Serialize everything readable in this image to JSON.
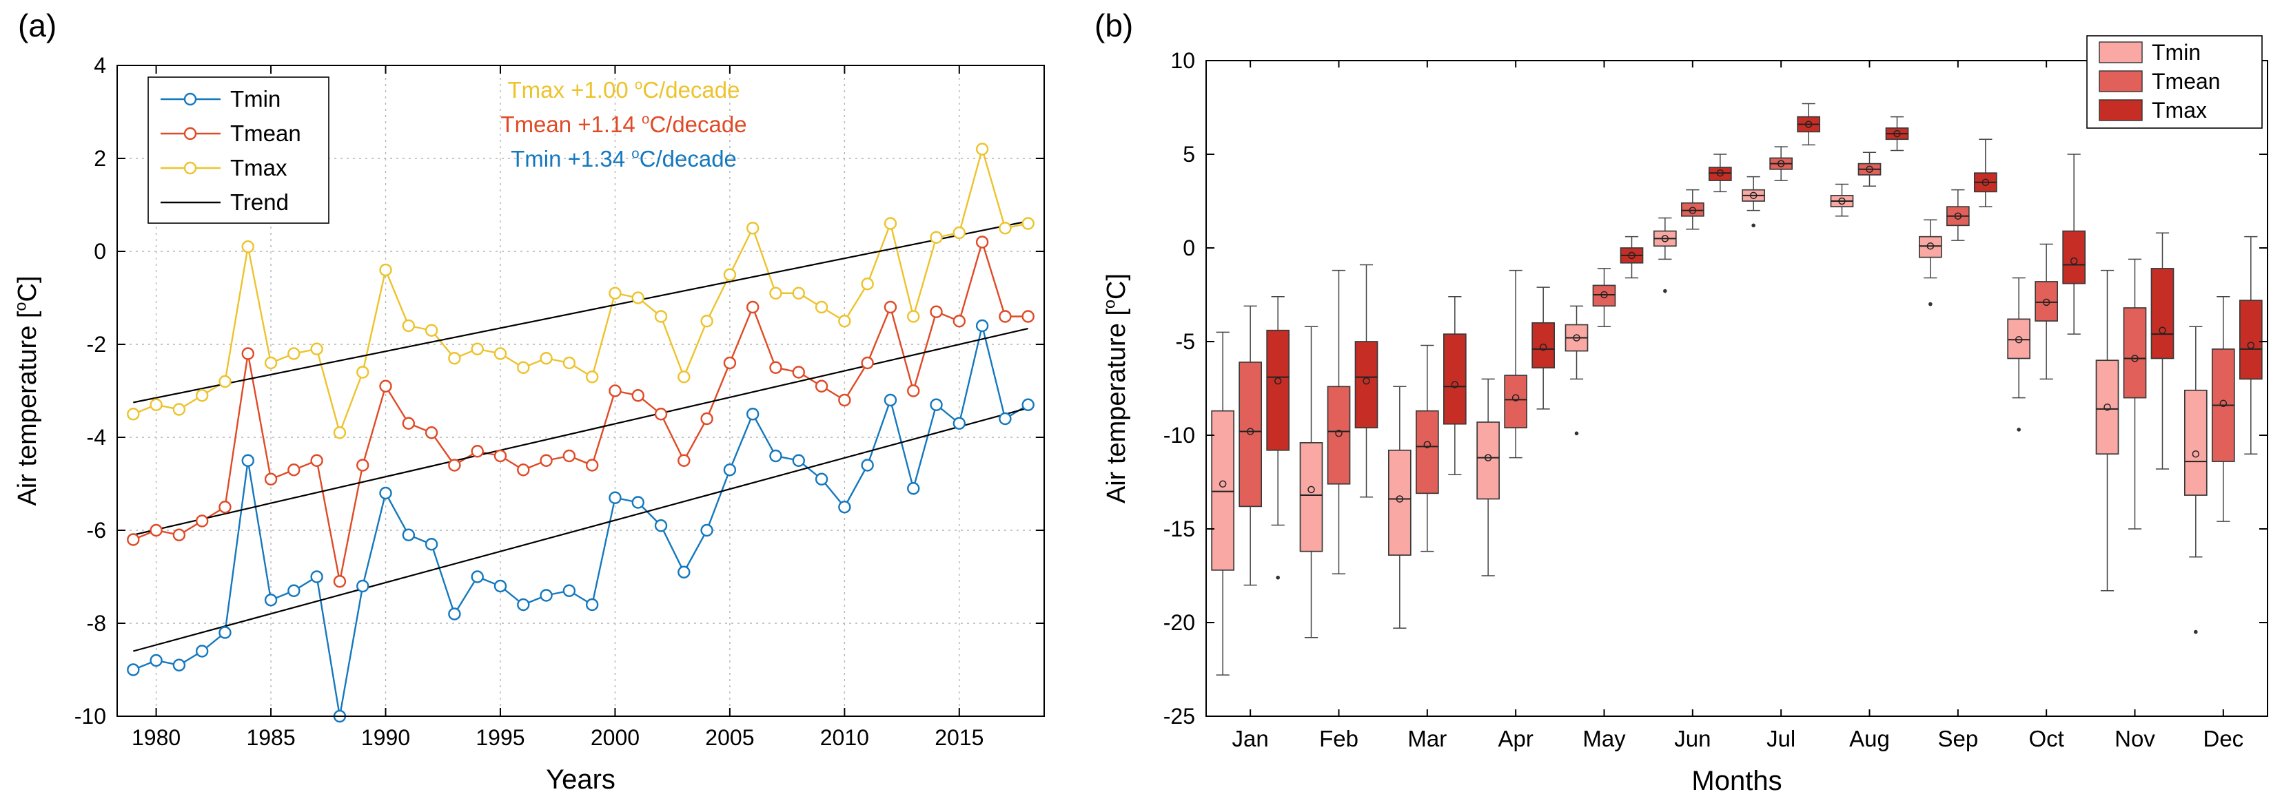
{
  "panels": {
    "a_label": "(a)",
    "b_label": "(b)"
  },
  "chart_data": [
    {
      "type": "line",
      "panel": "a",
      "xlabel": "Years",
      "ylabel": "Air temperature [°C]",
      "xlim": [
        1978.3,
        2018.7
      ],
      "ylim": [
        -10,
        4
      ],
      "xticks": [
        1980,
        1985,
        1990,
        1995,
        2000,
        2005,
        2010,
        2015
      ],
      "yticks": [
        -10,
        -8,
        -6,
        -4,
        -2,
        0,
        2,
        4
      ],
      "grid": true,
      "legend": [
        "Tmin",
        "Tmean",
        "Tmax",
        "Trend"
      ],
      "legend_position": "top-left",
      "colors": {
        "Tmin": "#1478be",
        "Tmean": "#e04a26",
        "Tmax": "#edc32c",
        "Trend": "#000000"
      },
      "annotations": [
        {
          "text": "Tmax +1.00 °C/decade",
          "color": "#edc32c"
        },
        {
          "text": "Tmean +1.14 °C/decade",
          "color": "#e04a26"
        },
        {
          "text": "Tmin +1.34 °C/decade",
          "color": "#1478be"
        }
      ],
      "x": [
        1979,
        1980,
        1981,
        1982,
        1983,
        1984,
        1985,
        1986,
        1987,
        1988,
        1989,
        1990,
        1991,
        1992,
        1993,
        1994,
        1995,
        1996,
        1997,
        1998,
        1999,
        2000,
        2001,
        2002,
        2003,
        2004,
        2005,
        2006,
        2007,
        2008,
        2009,
        2010,
        2011,
        2012,
        2013,
        2014,
        2015,
        2016,
        2017,
        2018
      ],
      "series": [
        {
          "name": "Tmin",
          "values": [
            -9.0,
            -8.8,
            -8.9,
            -8.6,
            -8.2,
            -4.5,
            -7.5,
            -7.3,
            -7.0,
            -10.0,
            -7.2,
            -5.2,
            -6.1,
            -6.3,
            -7.8,
            -7.0,
            -7.2,
            -7.6,
            -7.4,
            -7.3,
            -7.6,
            -5.3,
            -5.4,
            -5.9,
            -6.9,
            -6.0,
            -4.7,
            -3.5,
            -4.4,
            -4.5,
            -4.9,
            -5.5,
            -4.6,
            -3.2,
            -5.1,
            -3.3,
            -3.7,
            -1.6,
            -3.6,
            -3.3
          ]
        },
        {
          "name": "Tmean",
          "values": [
            -6.2,
            -6.0,
            -6.1,
            -5.8,
            -5.5,
            -2.2,
            -4.9,
            -4.7,
            -4.5,
            -7.1,
            -4.6,
            -2.9,
            -3.7,
            -3.9,
            -4.6,
            -4.3,
            -4.4,
            -4.7,
            -4.5,
            -4.4,
            -4.6,
            -3.0,
            -3.1,
            -3.5,
            -4.5,
            -3.6,
            -2.4,
            -1.2,
            -2.5,
            -2.6,
            -2.9,
            -3.2,
            -2.4,
            -1.2,
            -3.0,
            -1.3,
            -1.5,
            0.2,
            -1.4,
            -1.4
          ]
        },
        {
          "name": "Tmax",
          "values": [
            -3.5,
            -3.3,
            -3.4,
            -3.1,
            -2.8,
            0.1,
            -2.4,
            -2.2,
            -2.1,
            -3.9,
            -2.6,
            -0.4,
            -1.6,
            -1.7,
            -2.3,
            -2.1,
            -2.2,
            -2.5,
            -2.3,
            -2.4,
            -2.7,
            -0.9,
            -1.0,
            -1.4,
            -2.7,
            -1.5,
            -0.5,
            0.5,
            -0.9,
            -0.9,
            -1.2,
            -1.5,
            -0.7,
            0.6,
            -1.4,
            0.3,
            0.4,
            2.2,
            0.5,
            0.6
          ]
        }
      ],
      "trend_lines": [
        {
          "name": "Tmin",
          "start": [
            1979,
            -8.6
          ],
          "end": [
            2018,
            -3.37
          ]
        },
        {
          "name": "Tmean",
          "start": [
            1979,
            -6.1
          ],
          "end": [
            2018,
            -1.66
          ]
        },
        {
          "name": "Tmax",
          "start": [
            1979,
            -3.25
          ],
          "end": [
            2018,
            0.65
          ]
        }
      ]
    },
    {
      "type": "boxplot",
      "panel": "b",
      "xlabel": "Months",
      "ylabel": "Air temperature [°C]",
      "ylim": [
        -25,
        10
      ],
      "yticks": [
        -25,
        -20,
        -15,
        -10,
        -5,
        0,
        5,
        10
      ],
      "categories": [
        "Jan",
        "Feb",
        "Mar",
        "Apr",
        "May",
        "Jun",
        "Jul",
        "Aug",
        "Sep",
        "Oct",
        "Nov",
        "Dec"
      ],
      "legend": [
        "Tmin",
        "Tmean",
        "Tmax"
      ],
      "legend_position": "top-right",
      "colors": {
        "Tmin": "#f9a8a3",
        "Tmean": "#e2605a",
        "Tmax": "#c62d25"
      },
      "series": [
        {
          "name": "Tmin",
          "boxes": [
            {
              "wlo": -22.8,
              "q1": -17.2,
              "med": -13.0,
              "q3": -8.7,
              "whi": -4.5,
              "mean": -12.6
            },
            {
              "wlo": -20.8,
              "q1": -16.2,
              "med": -13.2,
              "q3": -10.4,
              "whi": -4.2,
              "mean": -12.9
            },
            {
              "wlo": -20.3,
              "q1": -16.4,
              "med": -13.4,
              "q3": -10.8,
              "whi": -7.4,
              "mean": -13.4
            },
            {
              "wlo": -17.5,
              "q1": -13.4,
              "med": -11.2,
              "q3": -9.3,
              "whi": -7.0,
              "mean": -11.2
            },
            {
              "wlo": -7.0,
              "q1": -5.5,
              "med": -4.8,
              "q3": -4.1,
              "whi": -3.1,
              "mean": -4.8,
              "outliers": [
                -9.9
              ]
            },
            {
              "wlo": -0.6,
              "q1": 0.1,
              "med": 0.5,
              "q3": 0.9,
              "whi": 1.6,
              "mean": 0.5,
              "outliers": [
                -2.3
              ]
            },
            {
              "wlo": 2.0,
              "q1": 2.5,
              "med": 2.8,
              "q3": 3.1,
              "whi": 3.8,
              "mean": 2.8,
              "outliers": [
                1.2
              ]
            },
            {
              "wlo": 1.7,
              "q1": 2.2,
              "med": 2.5,
              "q3": 2.8,
              "whi": 3.4,
              "mean": 2.5
            },
            {
              "wlo": -1.6,
              "q1": -0.5,
              "med": 0.1,
              "q3": 0.6,
              "whi": 1.5,
              "mean": 0.1,
              "outliers": [
                -3.0
              ]
            },
            {
              "wlo": -8.0,
              "q1": -5.9,
              "med": -4.9,
              "q3": -3.8,
              "whi": -1.6,
              "mean": -4.9,
              "outliers": [
                -9.7
              ]
            },
            {
              "wlo": -18.3,
              "q1": -11.0,
              "med": -8.6,
              "q3": -6.0,
              "whi": -1.2,
              "mean": -8.5
            },
            {
              "wlo": -16.5,
              "q1": -13.2,
              "med": -11.4,
              "q3": -7.6,
              "whi": -4.2,
              "mean": -11.0,
              "outliers": [
                -20.5
              ]
            }
          ]
        },
        {
          "name": "Tmean",
          "boxes": [
            {
              "wlo": -18.0,
              "q1": -13.8,
              "med": -9.8,
              "q3": -6.1,
              "whi": -3.1,
              "mean": -9.8
            },
            {
              "wlo": -17.4,
              "q1": -12.6,
              "med": -9.8,
              "q3": -7.4,
              "whi": -1.2,
              "mean": -9.9
            },
            {
              "wlo": -16.2,
              "q1": -13.1,
              "med": -10.6,
              "q3": -8.7,
              "whi": -5.2,
              "mean": -10.5
            },
            {
              "wlo": -11.2,
              "q1": -9.6,
              "med": -8.1,
              "q3": -6.8,
              "whi": -1.2,
              "mean": -8.0
            },
            {
              "wlo": -4.2,
              "q1": -3.1,
              "med": -2.5,
              "q3": -2.0,
              "whi": -1.1,
              "mean": -2.5
            },
            {
              "wlo": 1.0,
              "q1": 1.7,
              "med": 2.0,
              "q3": 2.4,
              "whi": 3.1,
              "mean": 2.0
            },
            {
              "wlo": 3.6,
              "q1": 4.2,
              "med": 4.5,
              "q3": 4.8,
              "whi": 5.4,
              "mean": 4.5
            },
            {
              "wlo": 3.3,
              "q1": 3.9,
              "med": 4.2,
              "q3": 4.5,
              "whi": 5.1,
              "mean": 4.2
            },
            {
              "wlo": 0.4,
              "q1": 1.2,
              "med": 1.7,
              "q3": 2.2,
              "whi": 3.1,
              "mean": 1.7
            },
            {
              "wlo": -7.0,
              "q1": -3.9,
              "med": -2.9,
              "q3": -1.8,
              "whi": 0.2,
              "mean": -2.9
            },
            {
              "wlo": -15.0,
              "q1": -8.0,
              "med": -5.9,
              "q3": -3.2,
              "whi": -0.6,
              "mean": -5.9
            },
            {
              "wlo": -14.6,
              "q1": -11.4,
              "med": -8.4,
              "q3": -5.4,
              "whi": -2.6,
              "mean": -8.3
            }
          ]
        },
        {
          "name": "Tmax",
          "boxes": [
            {
              "wlo": -14.8,
              "q1": -10.8,
              "med": -6.9,
              "q3": -4.4,
              "whi": -2.6,
              "mean": -7.1,
              "outliers": [
                -17.6
              ]
            },
            {
              "wlo": -13.3,
              "q1": -9.6,
              "med": -6.9,
              "q3": -5.0,
              "whi": -0.9,
              "mean": -7.1
            },
            {
              "wlo": -12.1,
              "q1": -9.4,
              "med": -7.4,
              "q3": -4.6,
              "whi": -2.6,
              "mean": -7.3
            },
            {
              "wlo": -8.6,
              "q1": -6.4,
              "med": -5.4,
              "q3": -4.0,
              "whi": -2.1,
              "mean": -5.3
            },
            {
              "wlo": -1.6,
              "q1": -0.8,
              "med": -0.4,
              "q3": 0.0,
              "whi": 0.6,
              "mean": -0.4
            },
            {
              "wlo": 3.0,
              "q1": 3.6,
              "med": 4.0,
              "q3": 4.3,
              "whi": 5.0,
              "mean": 4.0
            },
            {
              "wlo": 5.5,
              "q1": 6.2,
              "med": 6.6,
              "q3": 7.0,
              "whi": 7.7,
              "mean": 6.6
            },
            {
              "wlo": 5.2,
              "q1": 5.8,
              "med": 6.1,
              "q3": 6.4,
              "whi": 7.0,
              "mean": 6.1
            },
            {
              "wlo": 2.2,
              "q1": 3.0,
              "med": 3.5,
              "q3": 4.0,
              "whi": 5.8,
              "mean": 3.5
            },
            {
              "wlo": -4.6,
              "q1": -1.9,
              "med": -0.9,
              "q3": 0.9,
              "whi": 5.0,
              "mean": -0.7
            },
            {
              "wlo": -11.8,
              "q1": -5.9,
              "med": -4.6,
              "q3": -1.1,
              "whi": 0.8,
              "mean": -4.4
            },
            {
              "wlo": -11.0,
              "q1": -7.0,
              "med": -5.4,
              "q3": -2.8,
              "whi": 0.6,
              "mean": -5.2
            }
          ]
        }
      ]
    }
  ]
}
